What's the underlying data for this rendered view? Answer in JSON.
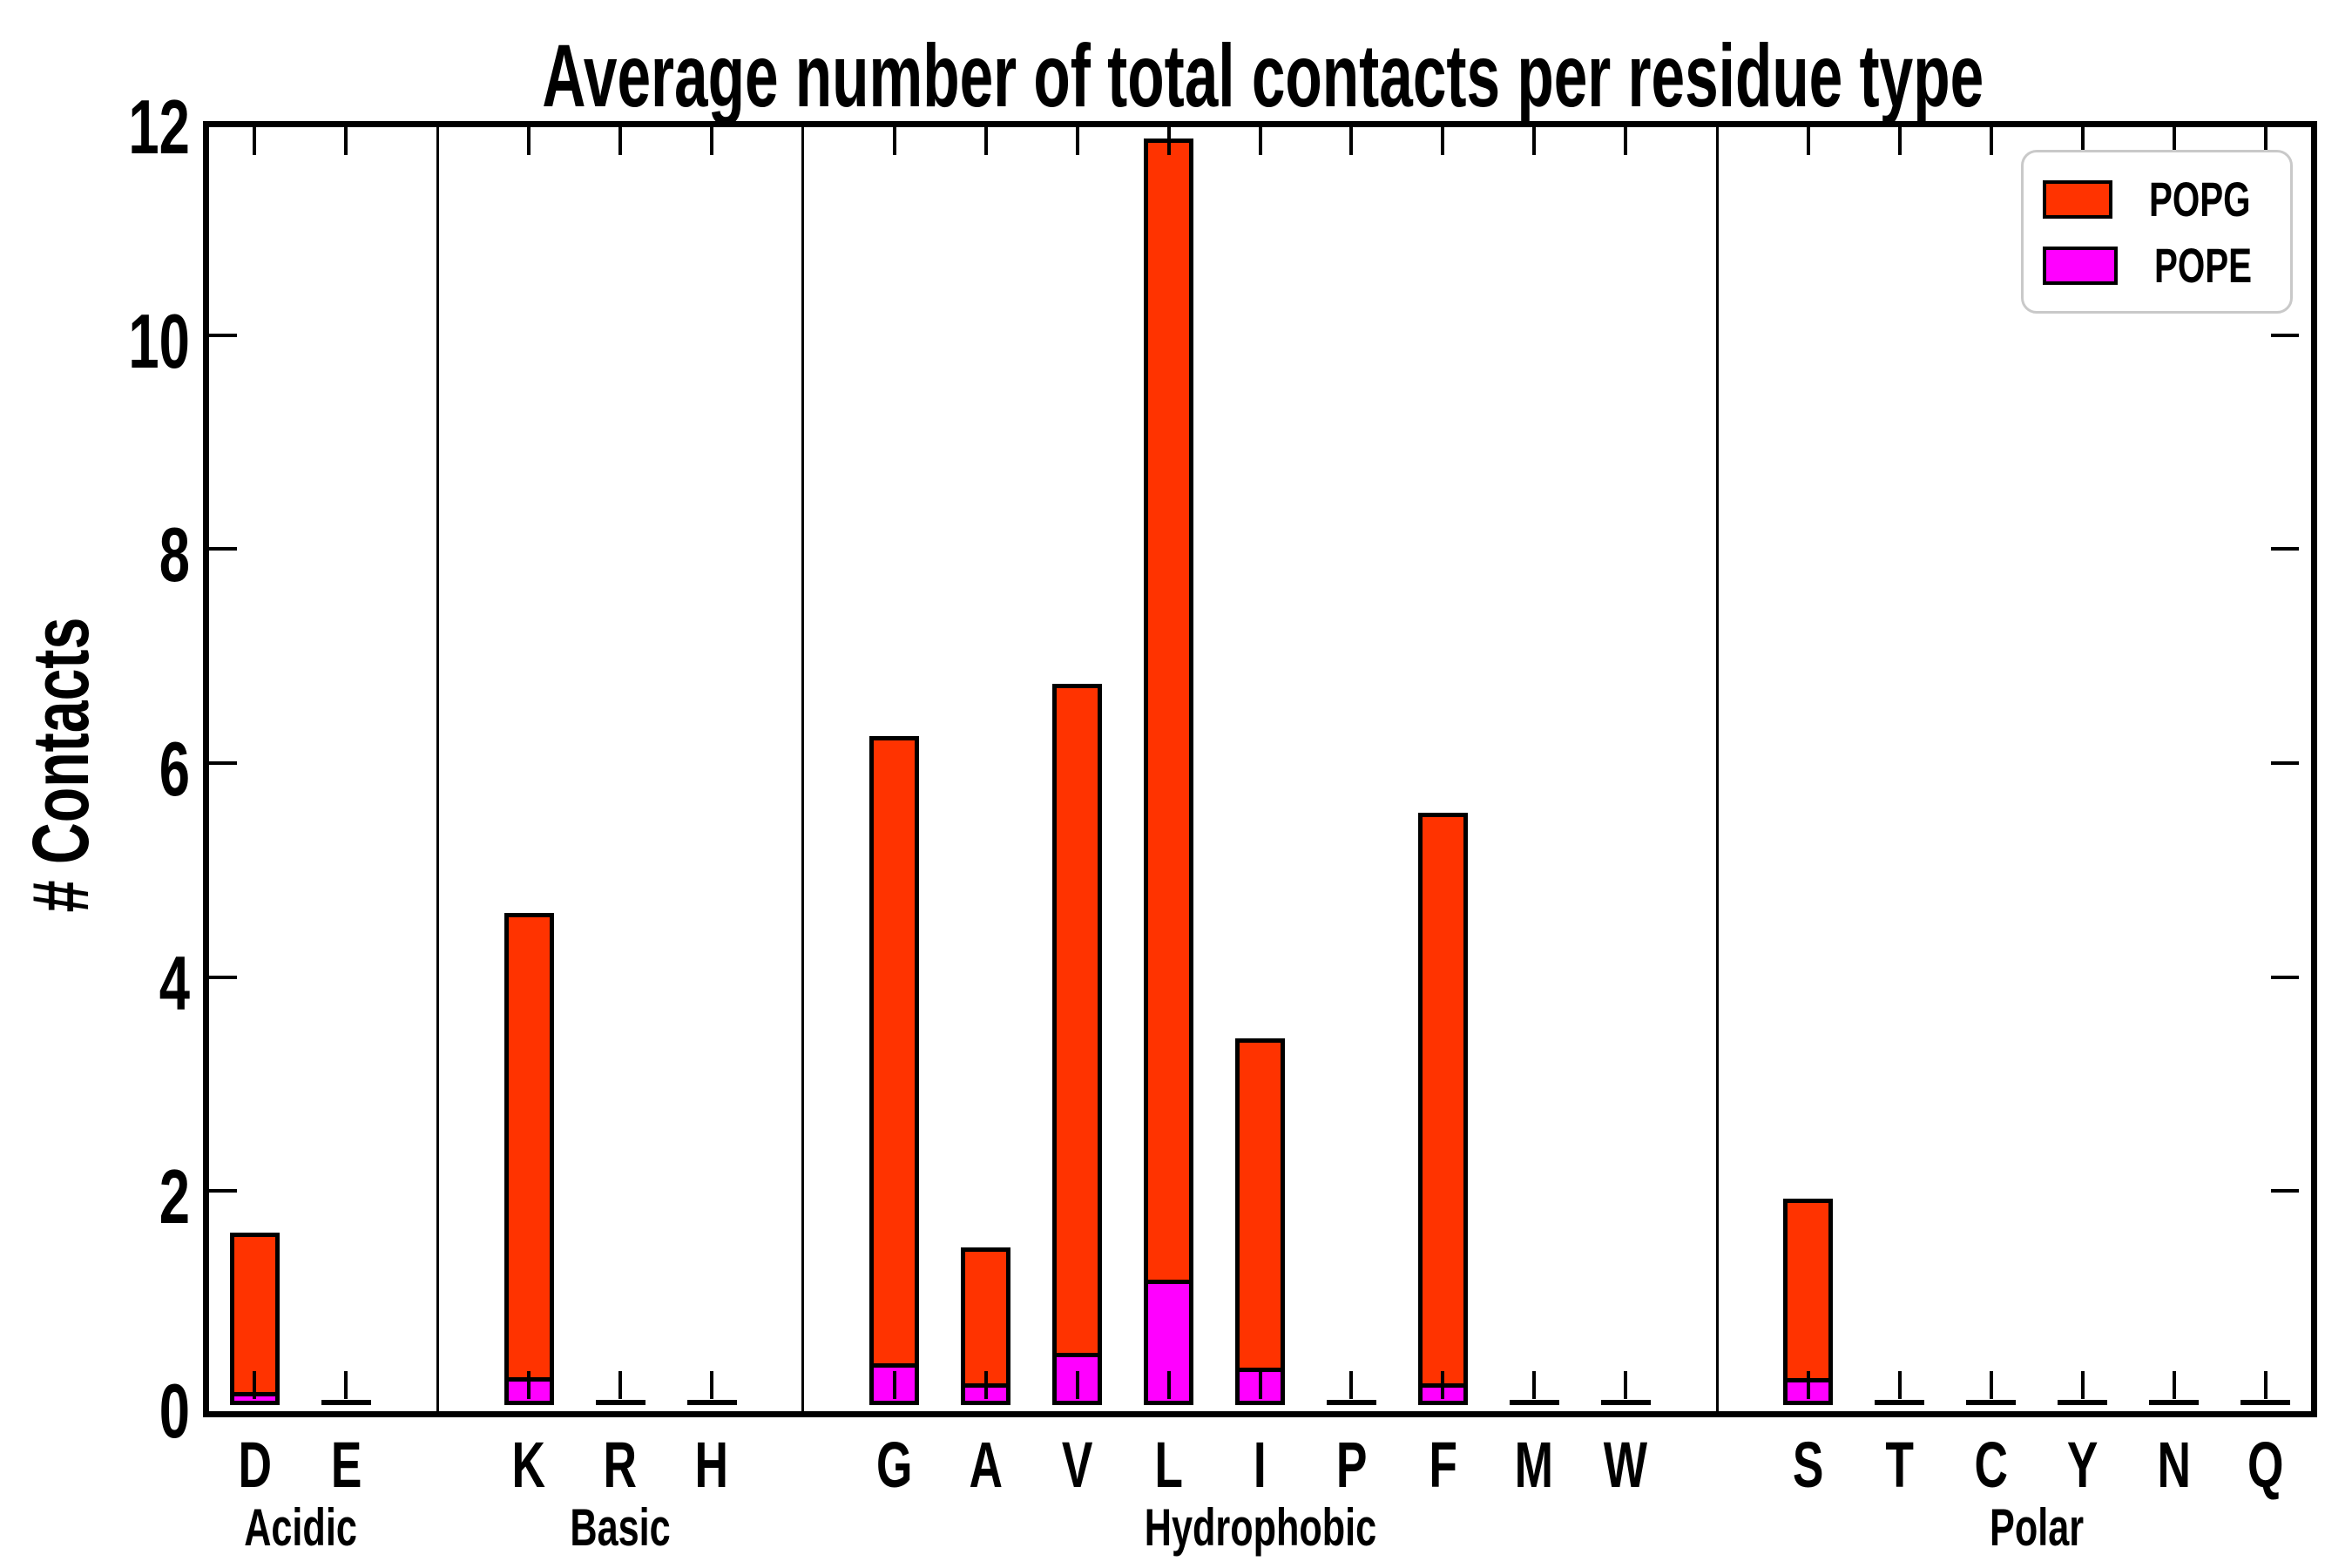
{
  "chart_data": {
    "type": "bar",
    "title": "Average number of total contacts per residue type",
    "ylabel": "# Contacts",
    "xlabel": "",
    "ylim": [
      0,
      12
    ],
    "y_ticks": [
      0,
      2,
      4,
      6,
      8,
      10,
      12
    ],
    "grid": false,
    "legend_position": "top-right",
    "bar_style": "POPG bar spans from baseline to total value; POPE bar is drawn in front from the baseline; both have black outlines",
    "groups": [
      {
        "label": "Acidic",
        "letters": [
          "D",
          "E"
        ]
      },
      {
        "label": "Basic",
        "letters": [
          "K",
          "R",
          "H"
        ]
      },
      {
        "label": "Hydrophobic",
        "letters": [
          "G",
          "A",
          "V",
          "L",
          "I",
          "P",
          "F",
          "M",
          "W"
        ]
      },
      {
        "label": "Polar",
        "letters": [
          "S",
          "T",
          "C",
          "Y",
          "N",
          "Q"
        ]
      }
    ],
    "categories": [
      "D",
      "E",
      "K",
      "R",
      "H",
      "G",
      "A",
      "V",
      "L",
      "I",
      "P",
      "F",
      "M",
      "W",
      "S",
      "T",
      "C",
      "Y",
      "N",
      "Q"
    ],
    "series": [
      {
        "name": "POPG",
        "color": "#ff3300",
        "values": [
          1.61,
          0.02,
          4.6,
          0.02,
          0.02,
          6.25,
          1.47,
          6.74,
          11.84,
          3.43,
          0.02,
          5.54,
          0.02,
          0.02,
          1.93,
          0.02,
          0.02,
          0.02,
          0.02,
          0.02
        ]
      },
      {
        "name": "POPE",
        "color": "#ff00ff",
        "values": [
          0.08,
          0,
          0.22,
          0,
          0,
          0.35,
          0.16,
          0.45,
          1.13,
          0.31,
          0,
          0.16,
          0,
          0,
          0.21,
          0,
          0,
          0,
          0,
          0
        ]
      }
    ]
  }
}
